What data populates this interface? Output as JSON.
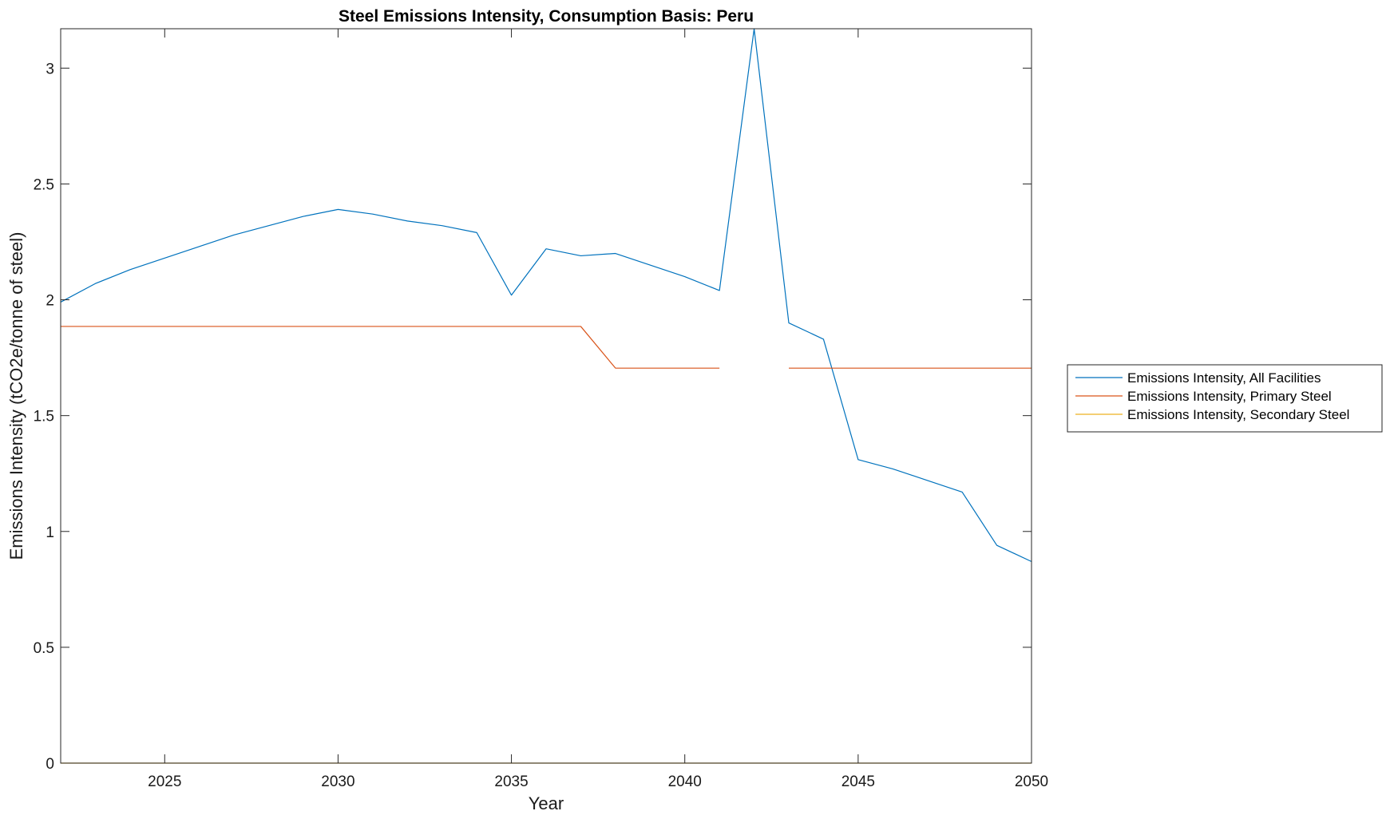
{
  "chart_data": {
    "type": "line",
    "title": "Steel Emissions Intensity, Consumption Basis: Peru",
    "xlabel": "Year",
    "ylabel": "Emissions Intensity (tCO2e/tonne of steel)",
    "xlim": [
      2022,
      2050
    ],
    "ylim": [
      0,
      3.17
    ],
    "xticks": [
      2025,
      2030,
      2035,
      2040,
      2045,
      2050
    ],
    "yticks": [
      0,
      0.5,
      1,
      1.5,
      2,
      2.5,
      3
    ],
    "xtick_labels": [
      "2025",
      "2030",
      "2035",
      "2040",
      "2045",
      "2050"
    ],
    "ytick_labels": [
      "0",
      "0.5",
      "1",
      "1.5",
      "2",
      "2.5",
      "3"
    ],
    "grid": false,
    "legend_position": "outside-right",
    "x": [
      2022,
      2023,
      2024,
      2025,
      2026,
      2027,
      2028,
      2029,
      2030,
      2031,
      2032,
      2033,
      2034,
      2035,
      2036,
      2037,
      2038,
      2039,
      2040,
      2041,
      2042,
      2043,
      2044,
      2045,
      2046,
      2047,
      2048,
      2049,
      2050
    ],
    "series": [
      {
        "name": "Emissions Intensity, All Facilities",
        "color": "#0072BD",
        "values": [
          1.99,
          2.07,
          2.13,
          2.18,
          2.23,
          2.28,
          2.32,
          2.36,
          2.39,
          2.37,
          2.34,
          2.32,
          2.29,
          2.02,
          2.22,
          2.19,
          2.2,
          2.15,
          2.1,
          2.04,
          3.18,
          1.9,
          1.83,
          1.31,
          1.27,
          1.22,
          1.17,
          0.94,
          0.87
        ]
      },
      {
        "name": "Emissions Intensity, Primary Steel",
        "color": "#D95319",
        "values": [
          1.885,
          1.885,
          1.885,
          1.885,
          1.885,
          1.885,
          1.885,
          1.885,
          1.885,
          1.885,
          1.885,
          1.885,
          1.885,
          1.885,
          1.885,
          1.885,
          1.705,
          1.705,
          1.705,
          1.705,
          null,
          1.705,
          1.705,
          1.705,
          1.705,
          1.705,
          1.705,
          1.705,
          1.705
        ]
      },
      {
        "name": "Emissions Intensity, Secondary Steel",
        "color": "#EDB120",
        "values": [
          0,
          0,
          0,
          0,
          0,
          0,
          0,
          0,
          0,
          0,
          0,
          0,
          0,
          0,
          0,
          0,
          0,
          0,
          0,
          0,
          0,
          0,
          0,
          0,
          0,
          0,
          0,
          0,
          0
        ]
      }
    ]
  }
}
